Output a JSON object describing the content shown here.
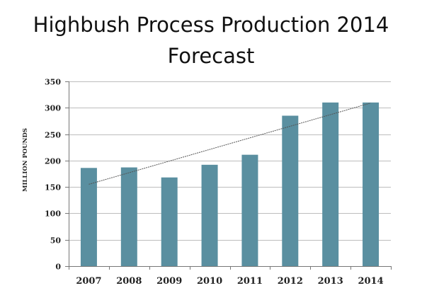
{
  "chart_data": {
    "type": "bar",
    "title_lines": [
      "Highbush Process Production 2014",
      "Forecast"
    ],
    "xlabel": "",
    "ylabel": "MILLION POUNDS",
    "categories": [
      "2007",
      "2008",
      "2009",
      "2010",
      "2011",
      "2012",
      "2013",
      "2014"
    ],
    "series": [
      {
        "values": [
          186,
          187,
          168,
          192,
          211,
          285,
          310,
          310
        ]
      }
    ],
    "ylim": [
      0,
      350
    ],
    "yticks": [
      0,
      50,
      100,
      150,
      200,
      250,
      300,
      350
    ],
    "grid": true,
    "trendline": {
      "start": [
        2007,
        155
      ],
      "end": [
        2014,
        309
      ]
    },
    "colors": {
      "bar": "#5a8fa0",
      "grid": "#bdbdbd",
      "axis": "#777777",
      "trend": "#555555"
    }
  }
}
